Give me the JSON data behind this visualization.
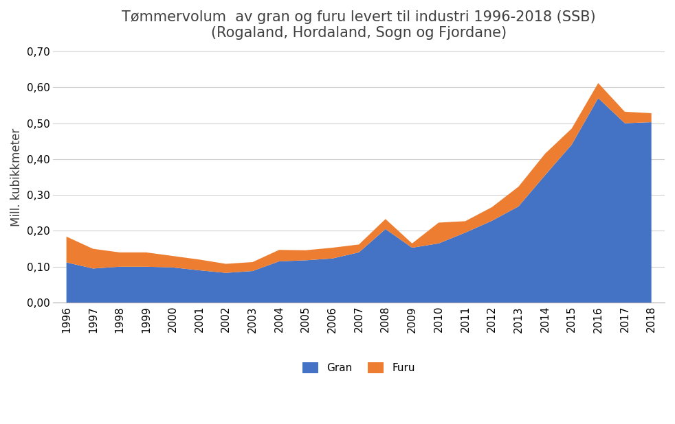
{
  "title_line1": "Tømmervolum  av gran og furu levert til industri 1996-2018 (SSB)",
  "title_line2": "(Rogaland, Hordaland, Sogn og Fjordane)",
  "ylabel": "Mill. kubikkmeter",
  "years": [
    1996,
    1997,
    1998,
    1999,
    2000,
    2001,
    2002,
    2003,
    2004,
    2005,
    2006,
    2007,
    2008,
    2009,
    2010,
    2011,
    2012,
    2013,
    2014,
    2015,
    2016,
    2017,
    2018
  ],
  "gran": [
    0.112,
    0.095,
    0.1,
    0.1,
    0.098,
    0.09,
    0.083,
    0.088,
    0.115,
    0.118,
    0.123,
    0.14,
    0.205,
    0.153,
    0.165,
    0.195,
    0.228,
    0.268,
    0.355,
    0.44,
    0.57,
    0.5,
    0.503
  ],
  "furu": [
    0.072,
    0.055,
    0.04,
    0.04,
    0.032,
    0.03,
    0.025,
    0.025,
    0.032,
    0.028,
    0.03,
    0.022,
    0.028,
    0.012,
    0.058,
    0.032,
    0.038,
    0.055,
    0.06,
    0.045,
    0.042,
    0.032,
    0.025
  ],
  "gran_color": "#4472C4",
  "furu_color": "#ED7D31",
  "background_color": "#FFFFFF",
  "legend_labels": [
    "Gran",
    "Furu"
  ],
  "ylim": [
    0.0,
    0.7
  ],
  "yticks": [
    0.0,
    0.1,
    0.2,
    0.3,
    0.4,
    0.5,
    0.6,
    0.7
  ],
  "title_fontsize": 15,
  "ylabel_fontsize": 12,
  "tick_fontsize": 11
}
